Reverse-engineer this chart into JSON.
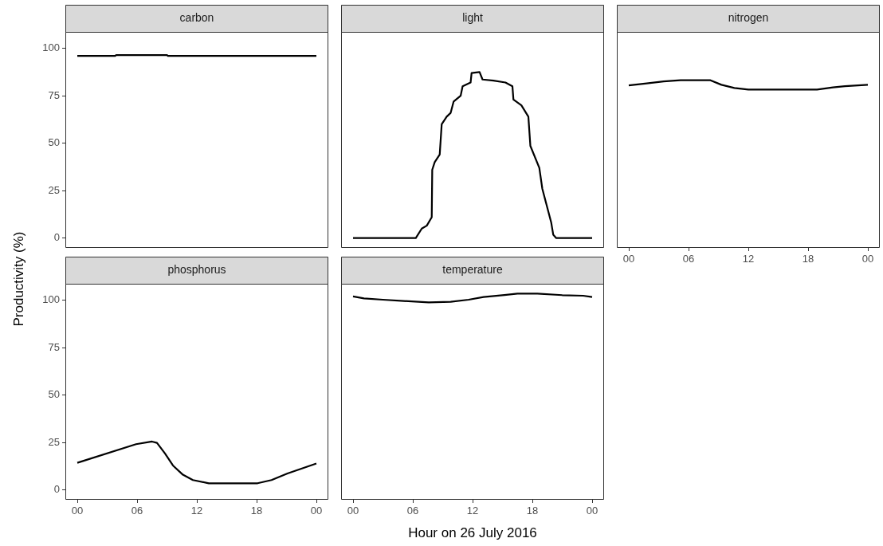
{
  "chart_data": [
    {
      "type": "line",
      "title": "carbon",
      "ylabel": "Productivity (%)",
      "color": "#000000",
      "x": [
        0,
        3.8,
        3.9,
        9.0,
        9.1,
        24
      ],
      "values": [
        96,
        96,
        96.5,
        96.5,
        96,
        96
      ],
      "xlim": [
        -1.2,
        25.2
      ],
      "ylim": [
        -5.2,
        108.7
      ],
      "yticks": [
        0,
        25,
        50,
        75,
        100
      ],
      "tick_labels": "y"
    },
    {
      "type": "line",
      "title": "light",
      "color": "#000000",
      "x": [
        0,
        6.3,
        6.9,
        7.4,
        7.9,
        7.95,
        8.2,
        8.7,
        8.9,
        9.4,
        9.8,
        10.1,
        10.8,
        11.0,
        11.8,
        11.9,
        12.7,
        13.0,
        14.1,
        15.3,
        16.0,
        16.1,
        16.9,
        17.6,
        17.8,
        18.7,
        19.0,
        19.4,
        19.9,
        20.1,
        20.4,
        24
      ],
      "values": [
        0,
        0,
        5,
        6.5,
        11,
        36,
        40,
        44,
        60,
        64,
        66,
        72,
        75,
        80,
        82,
        87,
        87.5,
        83.6,
        83,
        82,
        80,
        73,
        70,
        64,
        48.6,
        37,
        26,
        18,
        8,
        1.7,
        0,
        0
      ],
      "xlim": [
        -1.2,
        25.2
      ],
      "ylim": [
        -5.2,
        108.7
      ],
      "yticks": [
        0,
        25,
        50,
        75,
        100
      ],
      "tick_labels": false
    },
    {
      "type": "line",
      "title": "nitrogen",
      "color": "#000000",
      "x": [
        0,
        1.8,
        3.5,
        5.2,
        8.2,
        9.3,
        10.6,
        12.0,
        18.9,
        20.5,
        21.7,
        24
      ],
      "values": [
        80.5,
        81.5,
        82.6,
        83.2,
        83.2,
        80.8,
        79.1,
        78.3,
        78.3,
        79.4,
        80.1,
        80.8
      ],
      "xlim": [
        -1.2,
        25.2
      ],
      "xticks": [
        {
          "value": 0,
          "label": "00"
        },
        {
          "value": 6,
          "label": "06"
        },
        {
          "value": 12,
          "label": "12"
        },
        {
          "value": 18,
          "label": "18"
        },
        {
          "value": 24,
          "label": "00"
        }
      ],
      "ylim": [
        -5.2,
        108.7
      ],
      "yticks": [
        0,
        25,
        50,
        75,
        100
      ],
      "tick_labels": "x"
    },
    {
      "type": "line",
      "title": "phosphorus",
      "color": "#000000",
      "x": [
        0,
        5.9,
        7.5,
        8.0,
        8.8,
        9.6,
        10.6,
        11.6,
        13.2,
        18.1,
        19.5,
        21.1,
        24
      ],
      "values": [
        14.3,
        24.1,
        25.5,
        24.8,
        19.2,
        12.9,
        8.0,
        5.2,
        3.5,
        3.5,
        5.2,
        8.7,
        13.9
      ],
      "xlim": [
        -1.2,
        25.2
      ],
      "xticks": [
        {
          "value": 0,
          "label": "00"
        },
        {
          "value": 6,
          "label": "06"
        },
        {
          "value": 12,
          "label": "12"
        },
        {
          "value": 18,
          "label": "18"
        },
        {
          "value": 24,
          "label": "00"
        }
      ],
      "ylim": [
        -5.2,
        108.7
      ],
      "yticks": [
        0,
        25,
        50,
        75,
        100
      ]
    },
    {
      "type": "line",
      "title": "temperature",
      "xlabel": "Hour on 26 July 2016",
      "color": "#000000",
      "x": [
        0,
        1.1,
        3.0,
        5.1,
        7.6,
        9.8,
        11.6,
        13.1,
        15.2,
        16.5,
        18.5,
        21.0,
        23.1,
        24
      ],
      "values": [
        102.0,
        101.0,
        100.3,
        99.6,
        98.9,
        99.2,
        100.3,
        101.7,
        102.8,
        103.5,
        103.5,
        102.7,
        102.4,
        101.7
      ],
      "xlim": [
        -1.2,
        25.2
      ],
      "xticks": [
        {
          "value": 0,
          "label": "00"
        },
        {
          "value": 6,
          "label": "06"
        },
        {
          "value": 12,
          "label": "12"
        },
        {
          "value": 18,
          "label": "18"
        },
        {
          "value": 24,
          "label": "00"
        }
      ],
      "ylim": [
        -5.2,
        108.7
      ],
      "yticks": [
        0,
        25,
        50,
        75,
        100
      ],
      "tick_labels": "x"
    }
  ]
}
